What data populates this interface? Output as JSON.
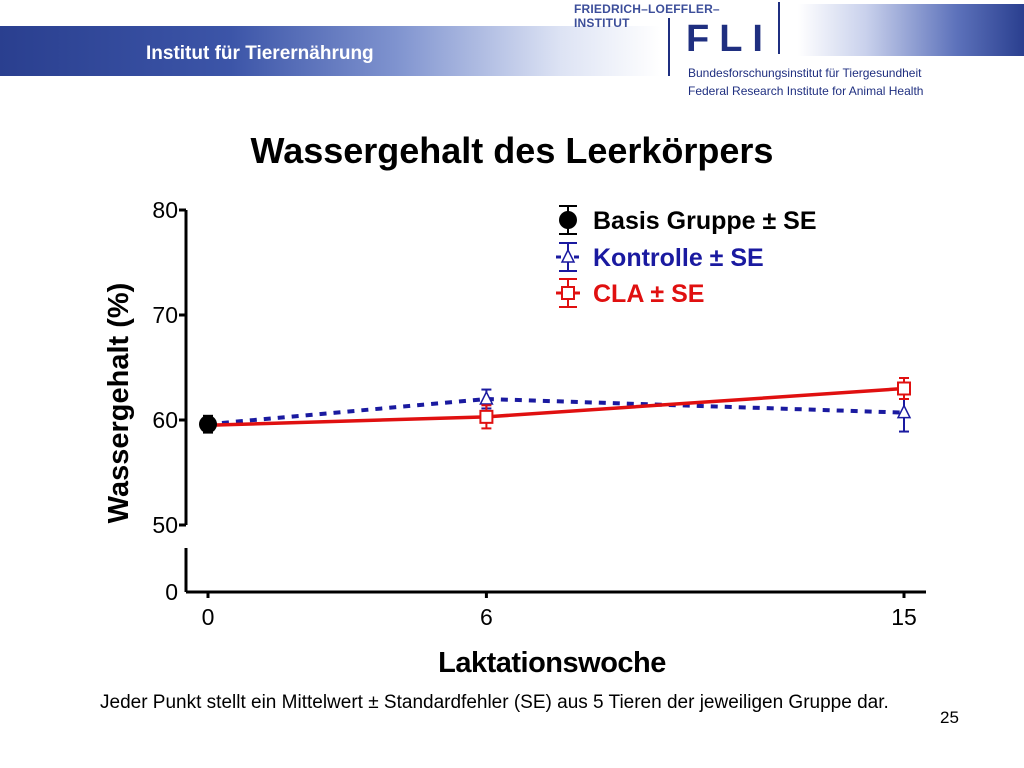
{
  "header": {
    "title": "Institut für Tierernährung"
  },
  "logo": {
    "top_text": "FRIEDRICH–LOEFFLER–INSTITUT",
    "acronym": "FLI",
    "line1": "Bundesforschungsinstitut für Tiergesundheit",
    "line2": "Federal Research Institute for Animal Health"
  },
  "colors": {
    "header_blue": "#2a3f8f",
    "basis": "#000000",
    "kontrolle": "#1a1aa0",
    "cla": "#e01010"
  },
  "chart_data": {
    "type": "line",
    "title": "Wassergehalt des Leerkörpers",
    "xlabel": "Laktationswoche",
    "ylabel": "Wassergehalt (%)",
    "x_ticks": [
      "0",
      "6",
      "15"
    ],
    "y_ticks": [
      "0",
      "50",
      "60",
      "70",
      "80"
    ],
    "ylim": [
      50,
      80
    ],
    "y_axis_break": true,
    "legend_position": "top-right",
    "series": [
      {
        "name": "Basis Gruppe  ± SE",
        "marker": "circle",
        "line": "none",
        "color": "#000000",
        "points": [
          {
            "x": 0,
            "y": 59.6,
            "se": 0.8
          }
        ]
      },
      {
        "name": "Kontrolle ± SE",
        "marker": "triangle-open",
        "line": "dashed",
        "color": "#1a1aa0",
        "points": [
          {
            "x": 0,
            "y": 59.6,
            "se": 0
          },
          {
            "x": 6,
            "y": 62.0,
            "se": 0.9
          },
          {
            "x": 15,
            "y": 60.7,
            "se": 1.8
          }
        ]
      },
      {
        "name": "CLA ± SE",
        "marker": "square-open",
        "line": "solid",
        "color": "#e01010",
        "points": [
          {
            "x": 0,
            "y": 59.5,
            "se": 0
          },
          {
            "x": 6,
            "y": 60.3,
            "se": 1.1
          },
          {
            "x": 15,
            "y": 63.0,
            "se": 1.0
          }
        ]
      }
    ]
  },
  "footnote": "Jeder Punkt stellt ein Mittelwert ± Standardfehler (SE) aus 5 Tieren der jeweiligen Gruppe dar.",
  "slide_number": "25"
}
